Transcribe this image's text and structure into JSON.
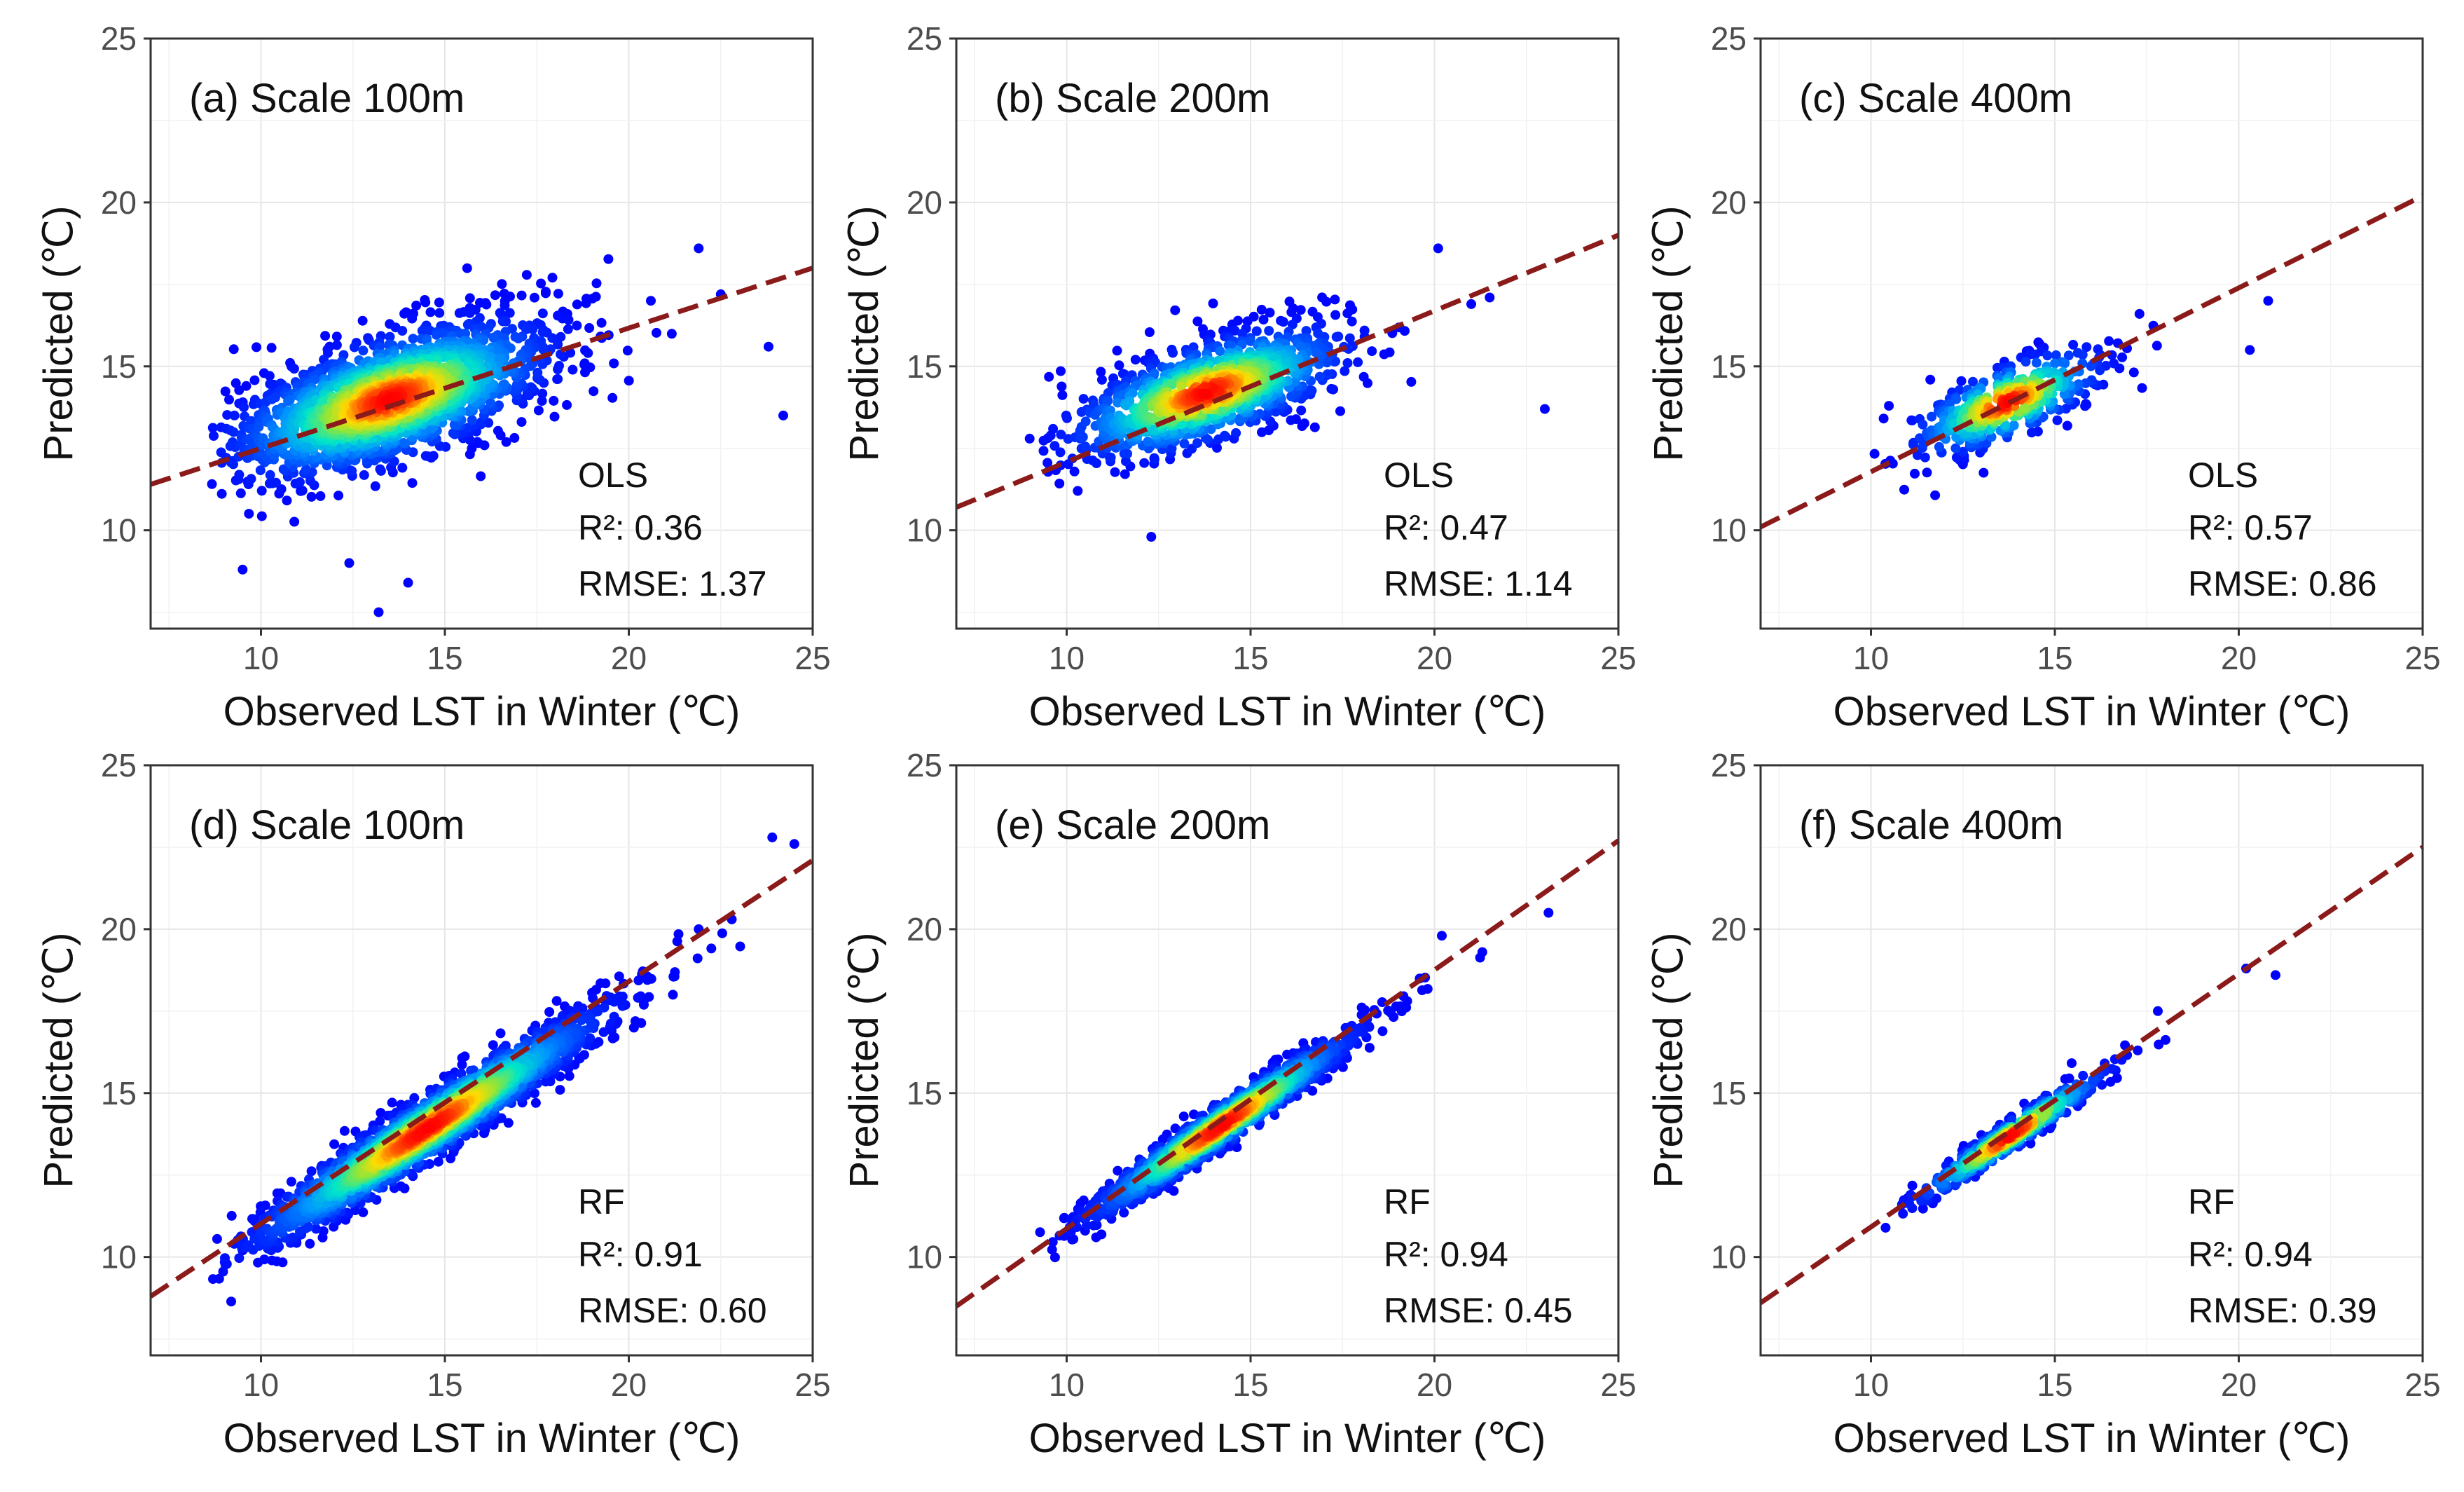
{
  "figure": {
    "x_axis_title": "Observed LST in Winter (℃)",
    "y_axis_title": "Predicted (℃)"
  },
  "colors": {
    "fit_line": "#8b1a1a",
    "density_low": "#0000ff",
    "density_mid": "#00e5c8",
    "density_high": "#ff0000"
  },
  "chart_data": [
    {
      "type": "scatter",
      "id": "a",
      "title": "(a) Scale 100m",
      "model": "OLS",
      "r2_label": "R²: 0.36",
      "rmse_label": "RMSE: 1.37",
      "xlim": [
        7,
        25
      ],
      "ylim": [
        7,
        25
      ],
      "xticks": [
        10,
        15,
        20,
        25
      ],
      "yticks": [
        10,
        15,
        20,
        25
      ],
      "fit_line": {
        "x": [
          7,
          25
        ],
        "y": [
          11.4,
          18.0
        ]
      },
      "cloud": {
        "center": [
          13.5,
          14.0
        ],
        "spread": [
          2.2,
          1.2
        ],
        "corr": 0.6,
        "n": 1800
      },
      "extra_points": [
        [
          9.5,
          8.8
        ],
        [
          13.2,
          7.5
        ],
        [
          14.0,
          8.4
        ],
        [
          12.4,
          9.0
        ],
        [
          21.9,
          18.6
        ],
        [
          23.8,
          15.6
        ],
        [
          24.2,
          13.5
        ],
        [
          22.5,
          17.2
        ],
        [
          20.6,
          17.0
        ],
        [
          9.6,
          14.4
        ]
      ]
    },
    {
      "type": "scatter",
      "id": "b",
      "title": "(b) Scale 200m",
      "model": "OLS",
      "r2_label": "R²: 0.47",
      "rmse_label": "RMSE: 1.14",
      "xlim": [
        7,
        25
      ],
      "ylim": [
        7,
        25
      ],
      "xticks": [
        10,
        15,
        20,
        25
      ],
      "yticks": [
        10,
        15,
        20,
        25
      ],
      "fit_line": {
        "x": [
          7,
          25
        ],
        "y": [
          10.7,
          19.0
        ]
      },
      "cloud": {
        "center": [
          13.8,
          14.2
        ],
        "spread": [
          1.9,
          1.0
        ],
        "corr": 0.65,
        "n": 1100
      },
      "extra_points": [
        [
          20.1,
          18.6
        ],
        [
          23.0,
          13.7
        ],
        [
          12.3,
          9.8
        ],
        [
          21.0,
          16.9
        ],
        [
          21.5,
          17.1
        ],
        [
          10.3,
          11.2
        ]
      ]
    },
    {
      "type": "scatter",
      "id": "c",
      "title": "(c) Scale 400m",
      "model": "OLS",
      "r2_label": "R²: 0.57",
      "rmse_label": "RMSE: 0.86",
      "xlim": [
        7,
        25
      ],
      "ylim": [
        7,
        25
      ],
      "xticks": [
        10,
        15,
        20,
        25
      ],
      "yticks": [
        10,
        15,
        20,
        25
      ],
      "fit_line": {
        "x": [
          7,
          25
        ],
        "y": [
          10.1,
          20.2
        ]
      },
      "cloud": {
        "center": [
          13.7,
          13.9
        ],
        "spread": [
          1.3,
          0.8
        ],
        "corr": 0.7,
        "n": 420
      },
      "extra_points": [
        [
          20.8,
          17.0
        ],
        [
          20.3,
          15.5
        ],
        [
          17.3,
          16.6
        ]
      ]
    },
    {
      "type": "scatter",
      "id": "d",
      "title": "(d) Scale 100m",
      "model": "RF",
      "r2_label": "R²: 0.91",
      "rmse_label": "RMSE: 0.60",
      "xlim": [
        7,
        25
      ],
      "ylim": [
        7,
        25
      ],
      "xticks": [
        10,
        15,
        20,
        25
      ],
      "yticks": [
        10,
        15,
        20,
        25
      ],
      "fit_line": {
        "x": [
          7,
          25
        ],
        "y": [
          8.8,
          22.1
        ]
      },
      "cloud": {
        "center": [
          14.5,
          13.9
        ],
        "spread": [
          2.4,
          1.8
        ],
        "corr": 0.96,
        "n": 2000
      },
      "extra_points": [
        [
          23.9,
          22.8
        ],
        [
          24.5,
          22.6
        ],
        [
          22.8,
          20.3
        ],
        [
          21.9,
          20.0
        ],
        [
          9.5,
          10.2
        ],
        [
          10.0,
          10.5
        ],
        [
          21.2,
          18.0
        ]
      ]
    },
    {
      "type": "scatter",
      "id": "e",
      "title": "(e) Scale 200m",
      "model": "RF",
      "r2_label": "R²: 0.94",
      "rmse_label": "RMSE: 0.45",
      "xlim": [
        7,
        25
      ],
      "ylim": [
        7,
        25
      ],
      "xticks": [
        10,
        15,
        20,
        25
      ],
      "yticks": [
        10,
        15,
        20,
        25
      ],
      "fit_line": {
        "x": [
          7,
          25
        ],
        "y": [
          8.5,
          22.7
        ]
      },
      "cloud": {
        "center": [
          14.2,
          14.0
        ],
        "spread": [
          1.8,
          1.4
        ],
        "corr": 0.97,
        "n": 1300
      },
      "extra_points": [
        [
          23.1,
          20.5
        ],
        [
          21.3,
          19.3
        ],
        [
          20.2,
          19.8
        ],
        [
          10.5,
          10.8
        ],
        [
          10.8,
          10.6
        ]
      ]
    },
    {
      "type": "scatter",
      "id": "f",
      "title": "(f) Scale 400m",
      "model": "RF",
      "r2_label": "R²: 0.94",
      "rmse_label": "RMSE: 0.39",
      "xlim": [
        7,
        25
      ],
      "ylim": [
        7,
        25
      ],
      "xticks": [
        10,
        15,
        20,
        25
      ],
      "yticks": [
        10,
        15,
        20,
        25
      ],
      "fit_line": {
        "x": [
          7,
          25
        ],
        "y": [
          8.6,
          22.5
        ]
      },
      "cloud": {
        "center": [
          13.8,
          13.7
        ],
        "spread": [
          1.3,
          1.0
        ],
        "corr": 0.97,
        "n": 450
      },
      "extra_points": [
        [
          21.0,
          18.6
        ],
        [
          20.2,
          18.8
        ],
        [
          17.8,
          17.5
        ],
        [
          11.0,
          11.8
        ]
      ]
    }
  ]
}
